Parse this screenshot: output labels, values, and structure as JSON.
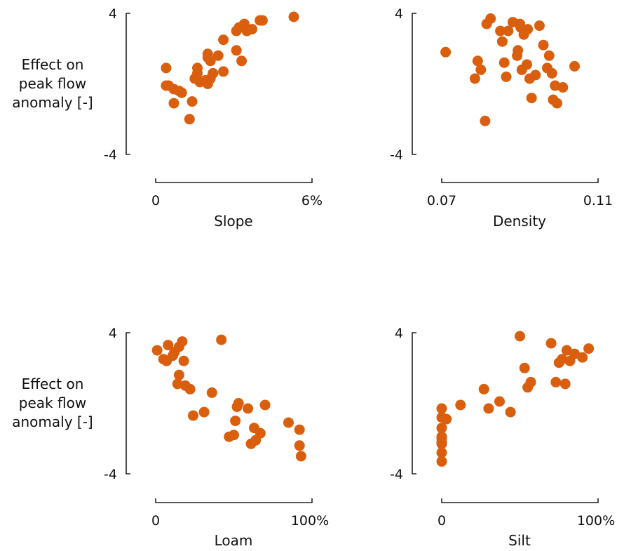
{
  "colors": {
    "points": "#d95f0e",
    "axis": "#222222"
  },
  "ylabel": [
    "Effect on",
    "peak flow",
    "anomaly [-]"
  ],
  "chart_data": [
    {
      "type": "scatter",
      "xlabel": "Slope",
      "xlim": [
        0,
        6
      ],
      "ylim": [
        -4,
        4
      ],
      "xticks": [
        "0",
        "6%"
      ],
      "yticks": [
        "4",
        "-4"
      ],
      "points": [
        [
          0.4,
          0.9
        ],
        [
          0.4,
          -0.1
        ],
        [
          0.5,
          -0.1
        ],
        [
          0.7,
          -0.3
        ],
        [
          0.9,
          -0.4
        ],
        [
          1.0,
          -0.5
        ],
        [
          0.7,
          -1.1
        ],
        [
          1.4,
          -1.0
        ],
        [
          1.3,
          -2.0
        ],
        [
          1.5,
          0.3
        ],
        [
          1.6,
          0.9
        ],
        [
          1.7,
          0.1
        ],
        [
          2.0,
          1.5
        ],
        [
          2.0,
          1.7
        ],
        [
          2.1,
          1.3
        ],
        [
          1.9,
          0.2
        ],
        [
          2.0,
          0.0
        ],
        [
          2.1,
          0.3
        ],
        [
          1.6,
          0.6
        ],
        [
          2.2,
          0.6
        ],
        [
          2.4,
          1.6
        ],
        [
          2.6,
          2.5
        ],
        [
          2.6,
          0.7
        ],
        [
          3.1,
          1.9
        ],
        [
          3.1,
          3.0
        ],
        [
          3.2,
          3.2
        ],
        [
          3.4,
          3.4
        ],
        [
          3.5,
          3.0
        ],
        [
          3.7,
          3.1
        ],
        [
          3.3,
          1.3
        ],
        [
          4.0,
          3.6
        ],
        [
          4.1,
          3.6
        ],
        [
          5.3,
          3.8
        ]
      ]
    },
    {
      "type": "scatter",
      "xlabel": "Density",
      "xlim": [
        0.07,
        0.11
      ],
      "ylim": [
        -4,
        4
      ],
      "xticks": [
        "0.07",
        "0.11"
      ],
      "yticks": [
        "4",
        "-4"
      ],
      "points": [
        [
          0.071,
          1.8
        ],
        [
          0.0785,
          0.3
        ],
        [
          0.0792,
          1.3
        ],
        [
          0.08,
          0.8
        ],
        [
          0.0811,
          -2.1
        ],
        [
          0.0815,
          3.4
        ],
        [
          0.0825,
          3.7
        ],
        [
          0.085,
          3.0
        ],
        [
          0.0865,
          0.4
        ],
        [
          0.0855,
          2.4
        ],
        [
          0.086,
          1.2
        ],
        [
          0.087,
          3.0
        ],
        [
          0.0882,
          3.5
        ],
        [
          0.0893,
          1.6
        ],
        [
          0.0895,
          1.9
        ],
        [
          0.09,
          3.4
        ],
        [
          0.0902,
          3.2
        ],
        [
          0.0905,
          0.8
        ],
        [
          0.091,
          2.8
        ],
        [
          0.0918,
          1.1
        ],
        [
          0.092,
          3.1
        ],
        [
          0.0925,
          0.3
        ],
        [
          0.093,
          -0.8
        ],
        [
          0.094,
          0.5
        ],
        [
          0.095,
          3.3
        ],
        [
          0.096,
          2.2
        ],
        [
          0.097,
          0.9
        ],
        [
          0.0975,
          1.6
        ],
        [
          0.0982,
          0.6
        ],
        [
          0.0985,
          -0.9
        ],
        [
          0.099,
          -0.1
        ],
        [
          0.0995,
          -1.1
        ],
        [
          0.101,
          -0.2
        ],
        [
          0.104,
          1.0
        ]
      ]
    },
    {
      "type": "scatter",
      "xlabel": "Loam",
      "xlim": [
        0,
        100
      ],
      "ylim": [
        -4,
        4
      ],
      "xticks": [
        "0",
        "100%"
      ],
      "yticks": [
        "4",
        "-4"
      ],
      "points": [
        [
          1,
          3.0
        ],
        [
          5,
          2.5
        ],
        [
          7,
          2.4
        ],
        [
          8,
          3.3
        ],
        [
          11,
          2.7
        ],
        [
          12,
          2.9
        ],
        [
          15,
          3.2
        ],
        [
          14,
          1.1
        ],
        [
          15,
          1.6
        ],
        [
          19,
          1.0
        ],
        [
          18,
          2.4
        ],
        [
          17,
          3.5
        ],
        [
          22,
          0.8
        ],
        [
          24,
          -0.7
        ],
        [
          31,
          -0.5
        ],
        [
          36,
          0.6
        ],
        [
          42,
          3.6
        ],
        [
          47,
          -1.9
        ],
        [
          50,
          -1.8
        ],
        [
          51,
          -1.0
        ],
        [
          52,
          -0.2
        ],
        [
          53,
          0.0
        ],
        [
          59,
          -0.3
        ],
        [
          61,
          -2.3
        ],
        [
          63,
          -1.4
        ],
        [
          64,
          -2.1
        ],
        [
          67,
          -1.7
        ],
        [
          70,
          -0.1
        ],
        [
          85,
          -1.1
        ],
        [
          92,
          -1.5
        ],
        [
          92,
          -2.4
        ],
        [
          93,
          -3.0
        ]
      ]
    },
    {
      "type": "scatter",
      "xlabel": "Silt",
      "xlim": [
        0,
        100
      ],
      "ylim": [
        -4,
        4
      ],
      "xticks": [
        "0",
        "100%"
      ],
      "yticks": [
        "4",
        "-4"
      ],
      "points": [
        [
          0,
          -0.3
        ],
        [
          0,
          -0.8
        ],
        [
          0,
          -1.4
        ],
        [
          0,
          -1.9
        ],
        [
          0,
          -2.0
        ],
        [
          0,
          -2.2
        ],
        [
          0,
          -2.3
        ],
        [
          0,
          -2.8
        ],
        [
          0,
          -3.3
        ],
        [
          3,
          -0.9
        ],
        [
          12,
          -0.1
        ],
        [
          27,
          0.8
        ],
        [
          30,
          -0.3
        ],
        [
          37,
          0.1
        ],
        [
          44,
          -0.5
        ],
        [
          50,
          3.8
        ],
        [
          53,
          2.0
        ],
        [
          55,
          0.9
        ],
        [
          57,
          1.2
        ],
        [
          70,
          3.4
        ],
        [
          73,
          1.2
        ],
        [
          75,
          2.3
        ],
        [
          77,
          2.5
        ],
        [
          79,
          1.1
        ],
        [
          80,
          3.0
        ],
        [
          82,
          2.4
        ],
        [
          85,
          2.8
        ],
        [
          90,
          2.6
        ],
        [
          94,
          3.1
        ]
      ]
    }
  ]
}
